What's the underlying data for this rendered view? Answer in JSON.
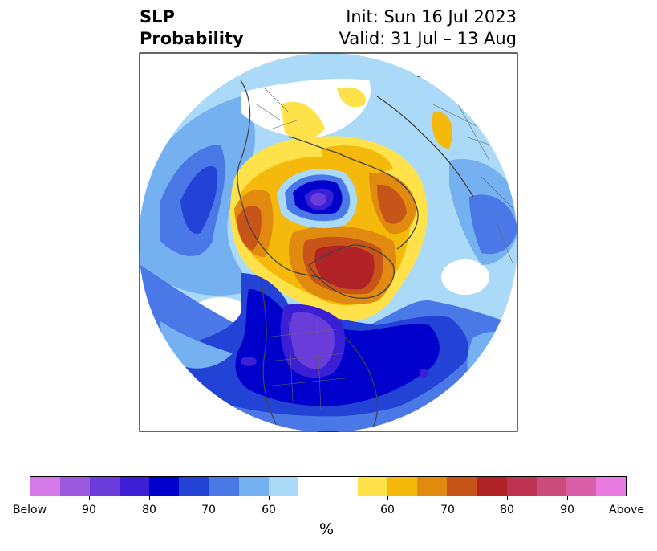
{
  "title": {
    "left_line1": "SLP",
    "left_line2": "Probability",
    "right_line1": "Init: Sun 16 Jul 2023",
    "right_line2": "Valid: 31 Jul – 13 Aug"
  },
  "colorbar": {
    "unit": "%",
    "colors": [
      "#d47ae8",
      "#9b59e0",
      "#6a3ddb",
      "#3a1fd4",
      "#0000cc",
      "#2342d6",
      "#4a78e6",
      "#75b0f0",
      "#abdaf9",
      "#ffffff",
      "#ffe24a",
      "#f4b90a",
      "#e08b10",
      "#c75418",
      "#b12326",
      "#c03350",
      "#cc4b7d",
      "#d95fa8",
      "#e87ae0"
    ],
    "ticks": [
      {
        "label": "Below",
        "index": 0
      },
      {
        "label": "90",
        "index": 2
      },
      {
        "label": "80",
        "index": 4
      },
      {
        "label": "70",
        "index": 6
      },
      {
        "label": "60",
        "index": 8
      },
      {
        "label": "60",
        "index": 12
      },
      {
        "label": "70",
        "index": 14
      },
      {
        "label": "80",
        "index": 16
      },
      {
        "label": "90",
        "index": 18
      },
      {
        "label": "Above",
        "index": 20
      }
    ]
  }
}
